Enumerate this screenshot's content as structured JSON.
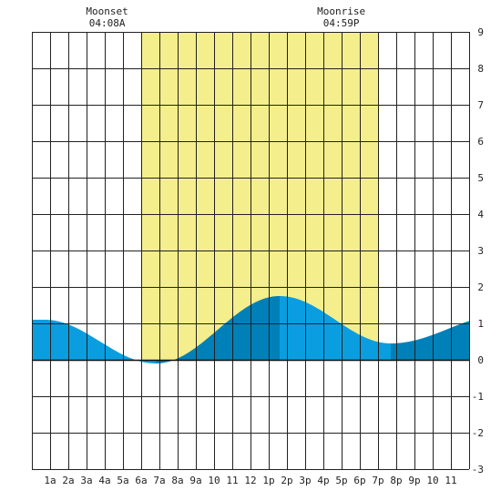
{
  "chart_data": {
    "type": "area",
    "x_tick_labels": [
      "1a",
      "2a",
      "3a",
      "4a",
      "5a",
      "6a",
      "7a",
      "8a",
      "9a",
      "10",
      "11",
      "12",
      "1p",
      "2p",
      "3p",
      "4p",
      "5p",
      "6p",
      "7p",
      "8p",
      "9p",
      "10",
      "11"
    ],
    "y_tick_labels": [
      "9",
      "8",
      "7",
      "6",
      "5",
      "4",
      "3",
      "2",
      "1",
      "0",
      "-1",
      "-2",
      "-3"
    ],
    "xlim": [
      0,
      24
    ],
    "ylim": [
      -3,
      9
    ],
    "grid": true,
    "daylight": {
      "start_hour": 6.0,
      "end_hour": 19.0,
      "color": "#f5ee8c"
    },
    "moon_events": [
      {
        "label": "Moonset",
        "time": "04:08A",
        "hour": 4.13
      },
      {
        "label": "Moonrise",
        "time": "04:59P",
        "hour": 16.98
      }
    ],
    "tide_extrema": [
      {
        "hour": 0.7,
        "height": 1.1
      },
      {
        "hour": 6.8,
        "height": -0.1
      },
      {
        "hour": 13.6,
        "height": 1.75
      },
      {
        "hour": 19.7,
        "height": 0.45
      },
      {
        "hour": 26.0,
        "height": 1.25
      }
    ],
    "tide_phase_breaks": [
      0.7,
      6.8,
      13.6,
      19.7
    ],
    "colors": {
      "tide_fill": "#0a9ee0",
      "tide_fill_dark": "#0080b8",
      "grid": "#222222",
      "zero_line": "#111111"
    }
  }
}
